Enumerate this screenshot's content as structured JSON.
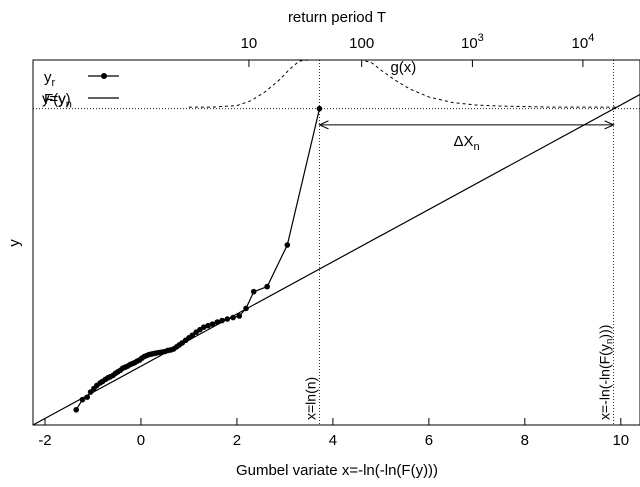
{
  "chart_data": {
    "type": "line",
    "title": "",
    "xlabel": "Gumbel variate x=-ln(-ln(F(y)))",
    "ylabel": "y",
    "top_axis_label": "return period T",
    "xlim": [
      -2.25,
      10.4
    ],
    "ylim": [
      0,
      7.2
    ],
    "x_ticks": [
      "-2",
      "0",
      "2",
      "4",
      "6",
      "8",
      "10"
    ],
    "x_tick_values": [
      -2,
      0,
      2,
      4,
      6,
      8,
      10
    ],
    "top_ticks": [
      {
        "label": "10",
        "T": 10
      },
      {
        "label": "100",
        "T": 100
      },
      {
        "label": "10",
        "sup": "3",
        "T": 1000
      },
      {
        "label": "10",
        "sup": "4",
        "T": 10000
      }
    ],
    "grid": false,
    "legend_position": "top-left",
    "legend": [
      {
        "label": "y",
        "sub": "r",
        "style": "line-points"
      },
      {
        "label": "F(y)",
        "style": "line"
      }
    ],
    "series": [
      {
        "name": "y_r",
        "style": "line-points",
        "x": [
          -1.35,
          -1.22,
          -1.12,
          -1.05,
          -0.98,
          -0.92,
          -0.85,
          -0.8,
          -0.74,
          -0.69,
          -0.64,
          -0.58,
          -0.53,
          -0.48,
          -0.43,
          -0.38,
          -0.33,
          -0.28,
          -0.23,
          -0.18,
          -0.13,
          -0.08,
          -0.03,
          0.02,
          0.07,
          0.12,
          0.17,
          0.22,
          0.27,
          0.32,
          0.38,
          0.44,
          0.5,
          0.56,
          0.62,
          0.68,
          0.74,
          0.8,
          0.86,
          0.93,
          1.0,
          1.07,
          1.15,
          1.23,
          1.31,
          1.4,
          1.49,
          1.59,
          1.69,
          1.8,
          1.92,
          2.05,
          2.19,
          2.35,
          2.63,
          3.05,
          3.72
        ],
        "y": [
          0.3,
          0.5,
          0.55,
          0.65,
          0.72,
          0.78,
          0.83,
          0.86,
          0.9,
          0.93,
          0.95,
          0.98,
          1.02,
          1.05,
          1.08,
          1.12,
          1.14,
          1.16,
          1.19,
          1.21,
          1.23,
          1.26,
          1.28,
          1.32,
          1.35,
          1.37,
          1.39,
          1.4,
          1.41,
          1.42,
          1.43,
          1.44,
          1.45,
          1.47,
          1.48,
          1.5,
          1.54,
          1.58,
          1.62,
          1.67,
          1.72,
          1.77,
          1.83,
          1.88,
          1.93,
          1.96,
          1.99,
          2.03,
          2.06,
          2.09,
          2.12,
          2.15,
          2.3,
          2.63,
          2.73,
          3.55,
          6.24
        ]
      },
      {
        "name": "F(y)",
        "style": "line",
        "x": [
          -2.25,
          10.4
        ],
        "y": [
          0.0,
          6.52
        ]
      },
      {
        "name": "g(x)",
        "style": "dashed",
        "x": [
          1.0,
          1.5,
          2.0,
          2.3,
          2.6,
          2.9,
          3.1,
          3.3,
          3.5,
          3.7,
          3.85,
          4.0,
          4.2,
          4.4,
          4.6,
          4.8,
          5.0,
          5.3,
          5.6,
          6.0,
          6.5,
          7.0,
          7.5,
          8.0,
          8.5,
          9.0,
          9.5,
          9.9
        ],
        "y": [
          6.27,
          6.27,
          6.3,
          6.4,
          6.58,
          6.82,
          7.02,
          7.18,
          7.35,
          7.48,
          7.54,
          7.56,
          7.52,
          7.43,
          7.3,
          7.15,
          7.0,
          6.8,
          6.63,
          6.47,
          6.36,
          6.31,
          6.29,
          6.28,
          6.27,
          6.27,
          6.27,
          6.27
        ]
      }
    ],
    "annotations": {
      "hline_label": "y=y",
      "hline_sub": "n",
      "hline_y": 6.24,
      "vline1_label": "x=ln(n)",
      "vline1_x": 3.72,
      "vline2_label": "x=-ln(-ln(F(y",
      "vline2_sub": "n",
      "vline2_tail": ")))",
      "vline2_x": 9.85,
      "arrow_label": "ΔX",
      "arrow_sub": "n",
      "arrow_from_x": 3.72,
      "arrow_to_x": 9.85,
      "arrow_y": 5.92,
      "g_label": "g(x)",
      "g_label_x": 5.2,
      "g_label_y": 7.35
    }
  }
}
